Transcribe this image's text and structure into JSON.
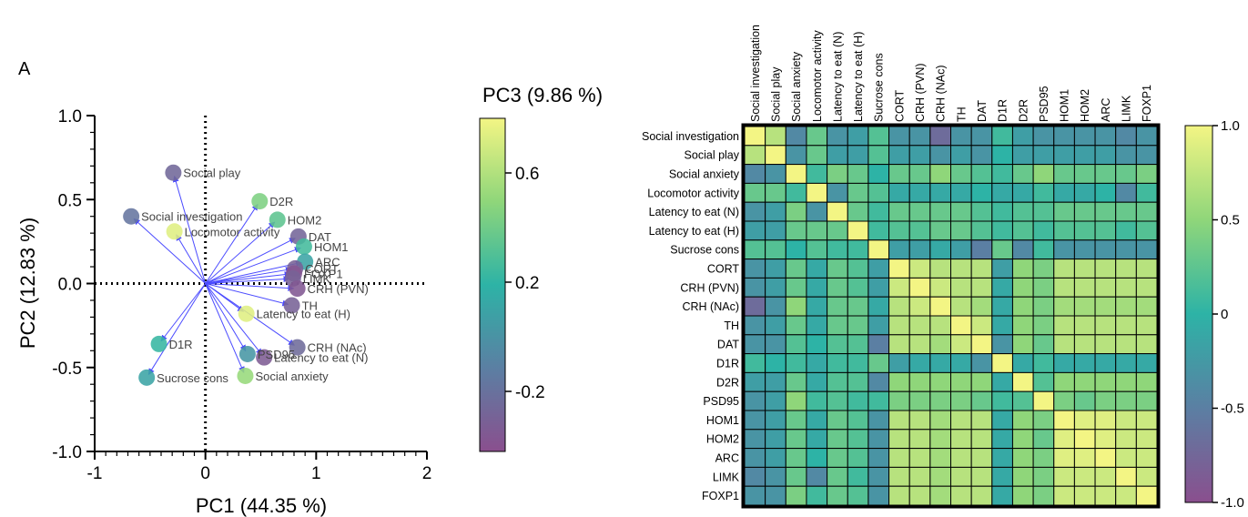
{
  "panel_label": "A",
  "chart_data": [
    {
      "type": "scatter",
      "subtype": "pca-biplot",
      "xlabel": "PC1 (44.35 %)",
      "ylabel": "PC2 (12.83 %)",
      "colorbar_label": "PC3 (9.86 %)",
      "xlim": [
        -1,
        2
      ],
      "ylim": [
        -1.0,
        1.0
      ],
      "xticks": [
        "-1",
        "0",
        "1",
        "2"
      ],
      "yticks": [
        "1.0",
        "0.5",
        "0.0",
        "-0.5",
        "-1.0"
      ],
      "colorbar_ticks": [
        "0.6",
        "0.2",
        "-0.2"
      ],
      "colorbar_range": [
        -0.42,
        0.8
      ],
      "points": [
        {
          "label": "Social play",
          "x": -0.29,
          "y": 0.66,
          "pc3": -0.26
        },
        {
          "label": "Social investigation",
          "x": -0.67,
          "y": 0.4,
          "pc3": -0.18
        },
        {
          "label": "Locomotor activity",
          "x": -0.28,
          "y": 0.31,
          "pc3": 0.74
        },
        {
          "label": "D2R",
          "x": 0.49,
          "y": 0.49,
          "pc3": 0.44
        },
        {
          "label": "HOM2",
          "x": 0.65,
          "y": 0.38,
          "pc3": 0.34
        },
        {
          "label": "DAT",
          "x": 0.84,
          "y": 0.28,
          "pc3": -0.28
        },
        {
          "label": "HOM1",
          "x": 0.89,
          "y": 0.22,
          "pc3": 0.26
        },
        {
          "label": "ARC",
          "x": 0.9,
          "y": 0.13,
          "pc3": 0.1
        },
        {
          "label": "CORT",
          "x": 0.81,
          "y": 0.09,
          "pc3": -0.3
        },
        {
          "label": "FOXP1",
          "x": 0.8,
          "y": 0.06,
          "pc3": -0.38
        },
        {
          "label": "LIMK",
          "x": 0.79,
          "y": 0.03,
          "pc3": -0.3
        },
        {
          "label": "CRH (PVN)",
          "x": 0.83,
          "y": -0.03,
          "pc3": -0.36
        },
        {
          "label": "TH",
          "x": 0.78,
          "y": -0.13,
          "pc3": -0.3
        },
        {
          "label": "Latency to eat (H)",
          "x": 0.37,
          "y": -0.18,
          "pc3": 0.74
        },
        {
          "label": "D1R",
          "x": -0.42,
          "y": -0.36,
          "pc3": 0.22
        },
        {
          "label": "CRH (NAc)",
          "x": 0.83,
          "y": -0.38,
          "pc3": -0.24
        },
        {
          "label": "PSD95",
          "x": 0.38,
          "y": -0.42,
          "pc3": 0.02
        },
        {
          "label": "Latency to eat (N)",
          "x": 0.53,
          "y": -0.44,
          "pc3": -0.34
        },
        {
          "label": "Sucrose cons",
          "x": -0.53,
          "y": -0.56,
          "pc3": 0.1
        },
        {
          "label": "Social anxiety",
          "x": 0.36,
          "y": -0.55,
          "pc3": 0.52
        }
      ]
    },
    {
      "type": "heatmap",
      "labels": [
        "Social investigation",
        "Social play",
        "Social anxiety",
        "Locomotor activity",
        "Latency to eat (N)",
        "Latency to eat (H)",
        "Sucrose cons",
        "CORT",
        "CRH (PVN)",
        "CRH (NAc)",
        "TH",
        "DAT",
        "D1R",
        "D2R",
        "PSD95",
        "HOM1",
        "HOM2",
        "ARC",
        "LIMK",
        "FOXP1"
      ],
      "colorbar_ticks": [
        "1.0",
        "0.5",
        "0",
        "-0.5",
        "-1.0"
      ],
      "vmin": -1.0,
      "vmax": 1.0,
      "values": [
        [
          1.0,
          0.7,
          -0.4,
          0.3,
          -0.3,
          -0.2,
          0.2,
          -0.3,
          -0.3,
          -0.7,
          -0.3,
          -0.3,
          0.1,
          -0.2,
          -0.3,
          -0.3,
          -0.3,
          -0.3,
          -0.4,
          -0.3
        ],
        [
          0.7,
          1.0,
          -0.3,
          0.3,
          -0.2,
          -0.2,
          0.2,
          -0.2,
          -0.2,
          -0.3,
          -0.2,
          -0.3,
          0.0,
          -0.2,
          -0.2,
          -0.2,
          -0.2,
          -0.2,
          -0.3,
          -0.3
        ],
        [
          -0.4,
          -0.3,
          1.0,
          0.1,
          0.4,
          0.3,
          0.0,
          0.3,
          0.3,
          0.5,
          0.3,
          0.2,
          0.1,
          0.3,
          0.5,
          0.3,
          0.3,
          0.3,
          0.3,
          0.4
        ],
        [
          0.3,
          0.3,
          0.1,
          1.0,
          -0.3,
          0.3,
          0.2,
          -0.1,
          -0.1,
          -0.1,
          -0.1,
          0.0,
          -0.1,
          -0.1,
          0.1,
          -0.1,
          -0.1,
          0.0,
          -0.4,
          0.1
        ],
        [
          -0.3,
          -0.2,
          0.4,
          -0.3,
          1.0,
          0.3,
          0.1,
          0.3,
          0.3,
          0.3,
          0.3,
          0.2,
          0.1,
          0.2,
          0.2,
          0.3,
          0.3,
          0.3,
          0.3,
          0.3
        ],
        [
          -0.2,
          -0.2,
          0.3,
          0.3,
          0.3,
          1.0,
          0.1,
          0.2,
          0.2,
          0.3,
          0.3,
          0.2,
          0.1,
          0.2,
          0.1,
          0.2,
          0.2,
          0.2,
          0.1,
          0.2
        ],
        [
          0.2,
          0.2,
          0.0,
          0.2,
          0.1,
          0.1,
          1.0,
          -0.2,
          -0.2,
          -0.1,
          -0.2,
          -0.5,
          0.3,
          -0.4,
          0.1,
          -0.3,
          -0.3,
          -0.3,
          -0.3,
          -0.3
        ],
        [
          -0.3,
          -0.2,
          0.3,
          -0.1,
          0.3,
          0.2,
          -0.2,
          1.0,
          0.8,
          0.7,
          0.7,
          0.7,
          -0.2,
          0.5,
          0.4,
          0.7,
          0.7,
          0.7,
          0.7,
          0.7
        ],
        [
          -0.3,
          -0.2,
          0.3,
          -0.1,
          0.3,
          0.2,
          -0.2,
          0.8,
          1.0,
          0.8,
          0.7,
          0.7,
          -0.1,
          0.5,
          0.4,
          0.7,
          0.7,
          0.7,
          0.7,
          0.7
        ],
        [
          -0.7,
          -0.3,
          0.5,
          -0.1,
          0.3,
          0.3,
          -0.1,
          0.7,
          0.8,
          1.0,
          0.7,
          0.6,
          -0.1,
          0.5,
          0.4,
          0.6,
          0.6,
          0.6,
          0.6,
          0.6
        ],
        [
          -0.3,
          -0.2,
          0.3,
          -0.1,
          0.3,
          0.3,
          -0.2,
          0.7,
          0.7,
          0.7,
          1.0,
          0.8,
          -0.1,
          0.5,
          0.4,
          0.7,
          0.7,
          0.7,
          0.7,
          0.7
        ],
        [
          -0.3,
          -0.3,
          0.2,
          0.0,
          0.2,
          0.2,
          -0.5,
          0.7,
          0.7,
          0.6,
          0.8,
          1.0,
          -0.3,
          0.5,
          0.3,
          0.7,
          0.7,
          0.7,
          0.7,
          0.7
        ],
        [
          0.1,
          0.0,
          0.1,
          -0.1,
          0.1,
          0.1,
          0.3,
          -0.2,
          -0.1,
          -0.1,
          -0.1,
          -0.3,
          1.0,
          -0.1,
          0.1,
          -0.1,
          -0.1,
          -0.1,
          -0.1,
          -0.1
        ],
        [
          -0.2,
          -0.2,
          0.3,
          -0.1,
          0.2,
          0.2,
          -0.4,
          0.5,
          0.5,
          0.5,
          0.5,
          0.5,
          -0.1,
          1.0,
          0.2,
          0.5,
          0.5,
          0.5,
          0.5,
          0.5
        ],
        [
          -0.3,
          -0.2,
          0.5,
          0.1,
          0.2,
          0.1,
          0.1,
          0.4,
          0.4,
          0.4,
          0.4,
          0.3,
          0.1,
          0.2,
          1.0,
          0.4,
          0.3,
          0.4,
          0.4,
          0.4
        ],
        [
          -0.3,
          -0.2,
          0.3,
          -0.1,
          0.3,
          0.2,
          -0.3,
          0.7,
          0.7,
          0.6,
          0.7,
          0.7,
          -0.1,
          0.5,
          0.4,
          1.0,
          0.9,
          0.9,
          0.8,
          0.8
        ],
        [
          -0.3,
          -0.2,
          0.3,
          -0.1,
          0.3,
          0.2,
          -0.3,
          0.7,
          0.7,
          0.6,
          0.7,
          0.7,
          -0.1,
          0.5,
          0.3,
          0.9,
          1.0,
          0.9,
          0.8,
          0.8
        ],
        [
          -0.3,
          -0.2,
          0.3,
          0.0,
          0.3,
          0.2,
          -0.3,
          0.7,
          0.7,
          0.6,
          0.7,
          0.7,
          -0.1,
          0.5,
          0.4,
          0.9,
          0.9,
          1.0,
          0.8,
          0.8
        ],
        [
          -0.4,
          -0.3,
          0.3,
          -0.4,
          0.3,
          0.1,
          -0.3,
          0.7,
          0.7,
          0.6,
          0.7,
          0.7,
          -0.1,
          0.5,
          0.4,
          0.8,
          0.8,
          0.8,
          1.0,
          0.8
        ],
        [
          -0.3,
          -0.3,
          0.4,
          0.1,
          0.3,
          0.2,
          -0.3,
          0.7,
          0.7,
          0.6,
          0.7,
          0.7,
          -0.1,
          0.5,
          0.4,
          0.8,
          0.8,
          0.8,
          0.8,
          1.0
        ]
      ]
    }
  ],
  "colors": {
    "arrow": "#4b4bff",
    "colormap": [
      "#8a4f8e",
      "#5b7fa3",
      "#2db3a6",
      "#8fd67a",
      "#f3f584"
    ]
  }
}
